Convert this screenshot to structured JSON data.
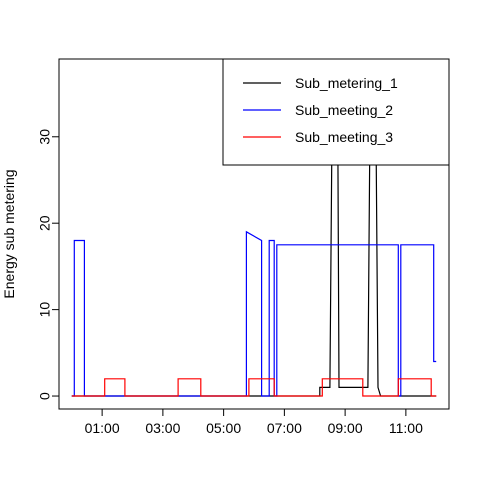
{
  "chart_data": {
    "type": "line",
    "title": "",
    "xlabel": "",
    "ylabel": "Energy sub metering",
    "x_start": "00:00",
    "x_end": "12:00",
    "xticks": [
      "01:00",
      "03:00",
      "05:00",
      "07:00",
      "09:00",
      "11:00"
    ],
    "yticks": [
      0,
      10,
      20,
      30
    ],
    "ylim": [
      0,
      39
    ],
    "grid": false,
    "legend_placement": "top-right",
    "series": [
      {
        "name": "Sub_metering_1",
        "color": "#000000",
        "points": [
          [
            "00:00",
            0
          ],
          [
            "08:10",
            0
          ],
          [
            "08:10",
            1
          ],
          [
            "08:30",
            1
          ],
          [
            "08:35",
            38
          ],
          [
            "08:45",
            38
          ],
          [
            "08:48",
            1
          ],
          [
            "09:45",
            1
          ],
          [
            "09:50",
            38
          ],
          [
            "10:00",
            38
          ],
          [
            "10:05",
            1
          ],
          [
            "10:10",
            0
          ],
          [
            "12:00",
            0
          ]
        ]
      },
      {
        "name": "Sub_meeting_2",
        "color": "#0000ff",
        "points": [
          [
            "00:00",
            0
          ],
          [
            "00:05",
            0
          ],
          [
            "00:05",
            18
          ],
          [
            "00:25",
            18
          ],
          [
            "00:25",
            0
          ],
          [
            "05:45",
            0
          ],
          [
            "05:45",
            19
          ],
          [
            "06:15",
            18
          ],
          [
            "06:15",
            0
          ],
          [
            "06:30",
            0
          ],
          [
            "06:30",
            18
          ],
          [
            "06:40",
            18
          ],
          [
            "06:40",
            0
          ],
          [
            "06:45",
            0
          ],
          [
            "06:45",
            17.5
          ],
          [
            "10:45",
            17.5
          ],
          [
            "10:45",
            0
          ],
          [
            "10:50",
            0
          ],
          [
            "10:50",
            17.5
          ],
          [
            "11:55",
            17.5
          ],
          [
            "11:55",
            4
          ],
          [
            "12:00",
            4
          ]
        ]
      },
      {
        "name": "Sub_meeting_3",
        "color": "#ff0000",
        "points": [
          [
            "00:00",
            0
          ],
          [
            "01:05",
            0
          ],
          [
            "01:05",
            2
          ],
          [
            "01:45",
            2
          ],
          [
            "01:45",
            0
          ],
          [
            "03:30",
            0
          ],
          [
            "03:30",
            2
          ],
          [
            "04:15",
            2
          ],
          [
            "04:15",
            0
          ],
          [
            "05:50",
            0
          ],
          [
            "05:50",
            2
          ],
          [
            "06:40",
            2
          ],
          [
            "06:40",
            0
          ],
          [
            "08:15",
            0
          ],
          [
            "08:15",
            2
          ],
          [
            "09:35",
            2
          ],
          [
            "09:35",
            0
          ],
          [
            "10:45",
            0
          ],
          [
            "10:45",
            2
          ],
          [
            "11:50",
            2
          ],
          [
            "11:50",
            0
          ],
          [
            "12:00",
            0
          ]
        ]
      }
    ]
  }
}
